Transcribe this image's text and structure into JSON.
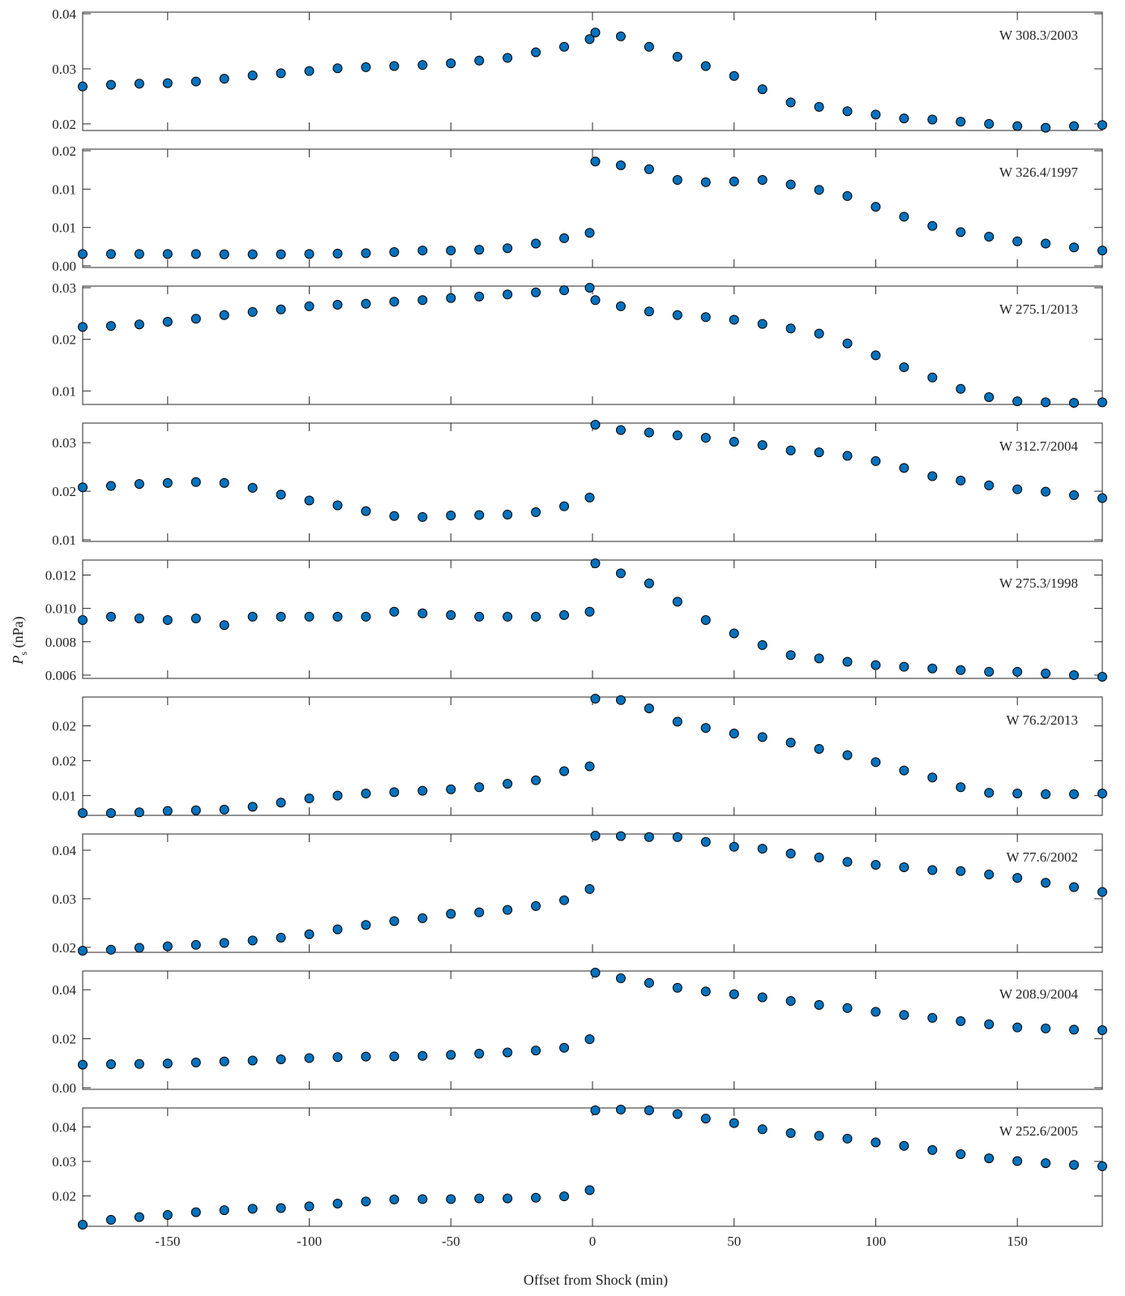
{
  "chart_data": {
    "type": "scatter",
    "xlabel": "Offset from Shock (min)",
    "ylabel_main": "P",
    "ylabel_sub": "s",
    "ylabel_unit": " (nPa)",
    "xlim": [
      -180,
      180
    ],
    "xticks": [
      -150,
      -100,
      -50,
      0,
      50,
      100,
      150
    ],
    "xtick_labels": [
      "-150",
      "-100",
      "-50",
      "0",
      "50",
      "100",
      "150"
    ],
    "marker_color": "#0072BD",
    "marker_edge": "#000000",
    "x": [
      -180,
      -170,
      -160,
      -150,
      -140,
      -130,
      -120,
      -110,
      -100,
      -90,
      -80,
      -70,
      -60,
      -50,
      -40,
      -30,
      -20,
      -10,
      -1,
      1,
      10,
      20,
      30,
      40,
      50,
      60,
      70,
      80,
      90,
      100,
      110,
      120,
      130,
      140,
      150,
      160,
      170,
      180
    ],
    "panels": [
      {
        "label": "W 308.3/2003",
        "ylim": [
          0.0191,
          0.04
        ],
        "yticks": [
          0.02,
          0.03,
          0.04
        ],
        "ytick_labels": [
          "0.02",
          "0.03",
          "0.04"
        ],
        "values": [
          0.0268,
          0.0271,
          0.0273,
          0.0274,
          0.0277,
          0.0282,
          0.0288,
          0.0292,
          0.0296,
          0.0301,
          0.0303,
          0.0305,
          0.0307,
          0.031,
          0.0315,
          0.032,
          0.033,
          0.034,
          0.0354,
          0.0366,
          0.0359,
          0.034,
          0.0322,
          0.0305,
          0.0287,
          0.0263,
          0.0239,
          0.0231,
          0.0223,
          0.0217,
          0.021,
          0.0208,
          0.0204,
          0.02,
          0.0196,
          0.0193,
          0.0196,
          0.0198
        ]
      },
      {
        "label": "W 326.4/1997",
        "ylim": [
          0.0,
          0.015
        ],
        "yticks": [
          0.0,
          0.005,
          0.01,
          0.015
        ],
        "ytick_labels": [
          "0.00",
          "0.01",
          "0.01",
          "0.02"
        ],
        "values": [
          0.00155,
          0.00155,
          0.00155,
          0.00155,
          0.00155,
          0.0015,
          0.0015,
          0.0015,
          0.00155,
          0.0016,
          0.00165,
          0.0018,
          0.002,
          0.002,
          0.0021,
          0.0023,
          0.0029,
          0.0036,
          0.0043,
          0.0136,
          0.0131,
          0.0126,
          0.0112,
          0.0109,
          0.011,
          0.0112,
          0.0106,
          0.0099,
          0.0091,
          0.0077,
          0.0064,
          0.0052,
          0.0044,
          0.0038,
          0.0032,
          0.0029,
          0.0024,
          0.002
        ]
      },
      {
        "label": "W 275.1/2013",
        "ylim": [
          0.0077,
          0.03
        ],
        "yticks": [
          0.01,
          0.02,
          0.03
        ],
        "ytick_labels": [
          "0.01",
          "0.02",
          "0.03"
        ],
        "values": [
          0.0224,
          0.0226,
          0.0229,
          0.0234,
          0.024,
          0.0247,
          0.0253,
          0.0258,
          0.0264,
          0.0267,
          0.0269,
          0.0273,
          0.0276,
          0.028,
          0.0283,
          0.0287,
          0.0291,
          0.0295,
          0.03,
          0.0276,
          0.0264,
          0.0254,
          0.0247,
          0.0243,
          0.0238,
          0.023,
          0.0221,
          0.0211,
          0.0192,
          0.0169,
          0.0146,
          0.0126,
          0.0104,
          0.0088,
          0.008,
          0.0078,
          0.0077,
          0.0078
        ]
      },
      {
        "label": "W 312.7/2004",
        "ylim": [
          0.01,
          0.0337
        ],
        "yticks": [
          0.01,
          0.02,
          0.03
        ],
        "ytick_labels": [
          "0.01",
          "0.02",
          "0.03"
        ],
        "values": [
          0.0208,
          0.0211,
          0.0215,
          0.0217,
          0.0219,
          0.0217,
          0.0207,
          0.0193,
          0.0181,
          0.0171,
          0.0159,
          0.0149,
          0.0147,
          0.015,
          0.0151,
          0.0152,
          0.0157,
          0.0169,
          0.0187,
          0.0337,
          0.0326,
          0.0321,
          0.0315,
          0.031,
          0.0302,
          0.0295,
          0.0284,
          0.028,
          0.0273,
          0.0262,
          0.0248,
          0.0231,
          0.0222,
          0.0212,
          0.0204,
          0.0199,
          0.0192,
          0.0186
        ]
      },
      {
        "label": "W 275.3/1998",
        "ylim": [
          0.0059,
          0.0128
        ],
        "yticks": [
          0.006,
          0.008,
          0.01,
          0.012
        ],
        "ytick_labels": [
          "0.006",
          "0.008",
          "0.010",
          "0.012"
        ],
        "values": [
          0.0093,
          0.0095,
          0.0094,
          0.0093,
          0.0094,
          0.009,
          0.0095,
          0.0095,
          0.0095,
          0.0095,
          0.0095,
          0.0098,
          0.0097,
          0.0096,
          0.0095,
          0.0095,
          0.0095,
          0.0096,
          0.0098,
          0.0127,
          0.0121,
          0.0115,
          0.0104,
          0.0093,
          0.0085,
          0.0078,
          0.0072,
          0.007,
          0.0068,
          0.0066,
          0.0065,
          0.0064,
          0.0063,
          0.0062,
          0.0062,
          0.0061,
          0.006,
          0.0059
        ]
      },
      {
        "label": "W 76.2/2013",
        "ylim": [
          0.0097,
          0.0262
        ],
        "yticks": [
          0.0123,
          0.0173,
          0.0223
        ],
        "ytick_labels": [
          "0.01",
          "0.02",
          "0.02"
        ],
        "values": [
          0.0098,
          0.0098,
          0.0099,
          0.0101,
          0.0102,
          0.0103,
          0.0107,
          0.0113,
          0.0119,
          0.0123,
          0.0126,
          0.0128,
          0.013,
          0.0132,
          0.0135,
          0.014,
          0.0145,
          0.0158,
          0.0165,
          0.0262,
          0.026,
          0.0248,
          0.0229,
          0.022,
          0.0212,
          0.0207,
          0.0199,
          0.019,
          0.0181,
          0.0171,
          0.0159,
          0.0149,
          0.0135,
          0.0127,
          0.0126,
          0.0125,
          0.0125,
          0.0126
        ]
      },
      {
        "label": "W 77.6/2002",
        "ylim": [
          0.0193,
          0.043
        ],
        "yticks": [
          0.02,
          0.03,
          0.04
        ],
        "ytick_labels": [
          "0.02",
          "0.03",
          "0.04"
        ],
        "values": [
          0.0193,
          0.0195,
          0.0199,
          0.0202,
          0.0205,
          0.0209,
          0.0214,
          0.022,
          0.0227,
          0.0237,
          0.0246,
          0.0254,
          0.026,
          0.0269,
          0.0272,
          0.0277,
          0.0285,
          0.0297,
          0.032,
          0.043,
          0.0429,
          0.0427,
          0.0427,
          0.0417,
          0.0407,
          0.0403,
          0.0393,
          0.0385,
          0.0376,
          0.037,
          0.0365,
          0.0359,
          0.0357,
          0.035,
          0.0343,
          0.0333,
          0.0324,
          0.0314
        ]
      },
      {
        "label": "W 208.9/2004",
        "ylim": [
          0.0,
          0.047
        ],
        "yticks": [
          0.0,
          0.02,
          0.04
        ],
        "ytick_labels": [
          "0.00",
          "0.02",
          "0.04"
        ],
        "values": [
          0.0094,
          0.0096,
          0.0097,
          0.0099,
          0.0103,
          0.0107,
          0.0111,
          0.0116,
          0.0121,
          0.0125,
          0.0127,
          0.0128,
          0.013,
          0.0134,
          0.0139,
          0.0144,
          0.0152,
          0.0163,
          0.0198,
          0.047,
          0.0447,
          0.0428,
          0.0408,
          0.0393,
          0.0382,
          0.0369,
          0.0354,
          0.0338,
          0.0325,
          0.031,
          0.0297,
          0.0285,
          0.0272,
          0.0259,
          0.0246,
          0.0242,
          0.0237,
          0.0235
        ]
      },
      {
        "label": "W 252.6/2005",
        "ylim": [
          0.0117,
          0.045
        ],
        "yticks": [
          0.02,
          0.03,
          0.04
        ],
        "ytick_labels": [
          "0.02",
          "0.03",
          "0.04"
        ],
        "values": [
          0.0117,
          0.0131,
          0.0139,
          0.0145,
          0.0153,
          0.0159,
          0.0163,
          0.0165,
          0.017,
          0.0178,
          0.0184,
          0.019,
          0.0191,
          0.0191,
          0.0193,
          0.0193,
          0.0195,
          0.0199,
          0.0217,
          0.0448,
          0.045,
          0.0448,
          0.0437,
          0.0424,
          0.0411,
          0.0393,
          0.0382,
          0.0374,
          0.0366,
          0.0355,
          0.0345,
          0.0333,
          0.0321,
          0.0309,
          0.0301,
          0.0295,
          0.029,
          0.0286
        ]
      }
    ]
  }
}
